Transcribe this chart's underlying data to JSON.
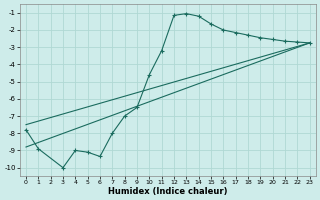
{
  "title": "",
  "xlabel": "Humidex (Indice chaleur)",
  "xlim": [
    -0.5,
    23.5
  ],
  "ylim": [
    -10.5,
    -0.5
  ],
  "yticks": [
    -10,
    -9,
    -8,
    -7,
    -6,
    -5,
    -4,
    -3,
    -2,
    -1
  ],
  "xticks": [
    0,
    1,
    2,
    3,
    4,
    5,
    6,
    7,
    8,
    9,
    10,
    11,
    12,
    13,
    14,
    15,
    16,
    17,
    18,
    19,
    20,
    21,
    22,
    23
  ],
  "bg_color": "#ceecea",
  "grid_color": "#b0d8d4",
  "line_color": "#1a6b5e",
  "line1_x": [
    0,
    1,
    3,
    4,
    5,
    6,
    7,
    8,
    9,
    10,
    11,
    12,
    13,
    14,
    15,
    16,
    17,
    18,
    19,
    20,
    21,
    22,
    23
  ],
  "line1_y": [
    -7.8,
    -8.9,
    -10.0,
    -9.0,
    -9.1,
    -9.35,
    -8.0,
    -7.0,
    -6.5,
    -4.6,
    -3.2,
    -1.15,
    -1.05,
    -1.2,
    -1.65,
    -2.0,
    -2.15,
    -2.3,
    -2.45,
    -2.55,
    -2.65,
    -2.7,
    -2.75
  ],
  "line3_x": [
    0,
    23
  ],
  "line3_y": [
    -8.8,
    -2.75
  ],
  "line4_x": [
    0,
    23
  ],
  "line4_y": [
    -7.5,
    -2.75
  ]
}
